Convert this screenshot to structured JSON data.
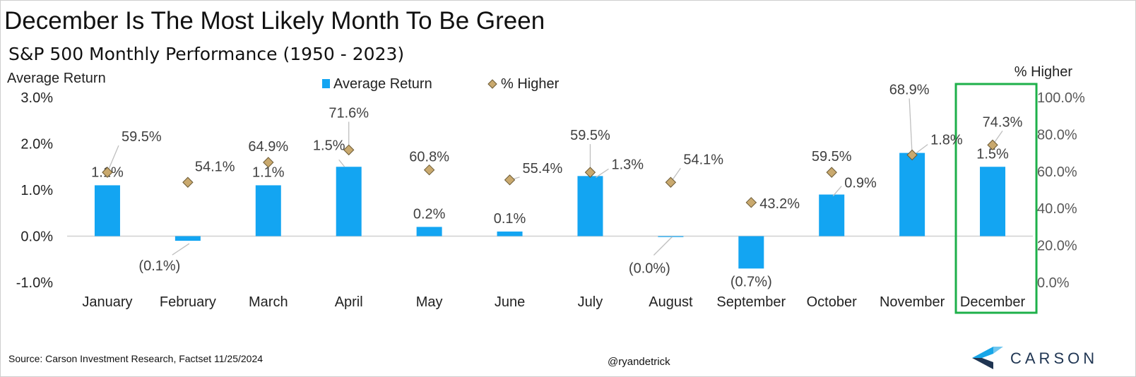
{
  "header": {
    "title": "December Is The Most Likely Month To Be Green",
    "subtitle": "S&P 500 Monthly Performance (1950 - 2023)"
  },
  "footer": {
    "source": "Source: Carson Investment Research, Factset 11/25/2024",
    "handle": "@ryandetrick",
    "logo_text": "CARSON"
  },
  "chart_data": {
    "type": "bar",
    "categories": [
      "January",
      "February",
      "March",
      "April",
      "May",
      "June",
      "July",
      "August",
      "September",
      "October",
      "November",
      "December"
    ],
    "series": [
      {
        "name": "Average Return",
        "values": [
          1.1,
          -0.1,
          1.1,
          1.5,
          0.2,
          0.1,
          1.3,
          0.0,
          -0.7,
          0.9,
          1.8,
          1.5
        ],
        "labels": [
          "1.1%",
          "(0.1%)",
          "1.1%",
          "1.5%",
          "0.2%",
          "0.1%",
          "1.3%",
          "(0.0%)",
          "(0.7%)",
          "0.9%",
          "1.8%",
          "1.5%"
        ],
        "color": "#13a5f2",
        "axis": "left"
      },
      {
        "name": "% Higher",
        "values": [
          59.5,
          54.1,
          64.9,
          71.6,
          60.8,
          55.4,
          59.5,
          54.1,
          43.2,
          59.5,
          68.9,
          74.3
        ],
        "labels": [
          "59.5%",
          "54.1%",
          "64.9%",
          "71.6%",
          "60.8%",
          "55.4%",
          "59.5%",
          "54.1%",
          "43.2%",
          "59.5%",
          "68.9%",
          "74.3%"
        ],
        "color": "#c9a96e",
        "marker": "diamond",
        "axis": "right"
      }
    ],
    "ylabel_left": "Average Return",
    "ylabel_right": "% Higher",
    "ylim_left": [
      -1.0,
      3.0
    ],
    "yticks_left": [
      "-1.0%",
      "0.0%",
      "1.0%",
      "2.0%",
      "3.0%"
    ],
    "ylim_right": [
      0,
      100
    ],
    "yticks_right": [
      "0.0%",
      "20.0%",
      "40.0%",
      "60.0%",
      "80.0%",
      "100.0%"
    ],
    "legend_position": "top-center",
    "grid": false,
    "highlight": {
      "category": "December",
      "color": "#1eb04a"
    }
  },
  "colors": {
    "bar": "#13a5f2",
    "marker": "#c9a96e",
    "highlight_box": "#1eb04a",
    "logo_accent": "#1f3552"
  }
}
